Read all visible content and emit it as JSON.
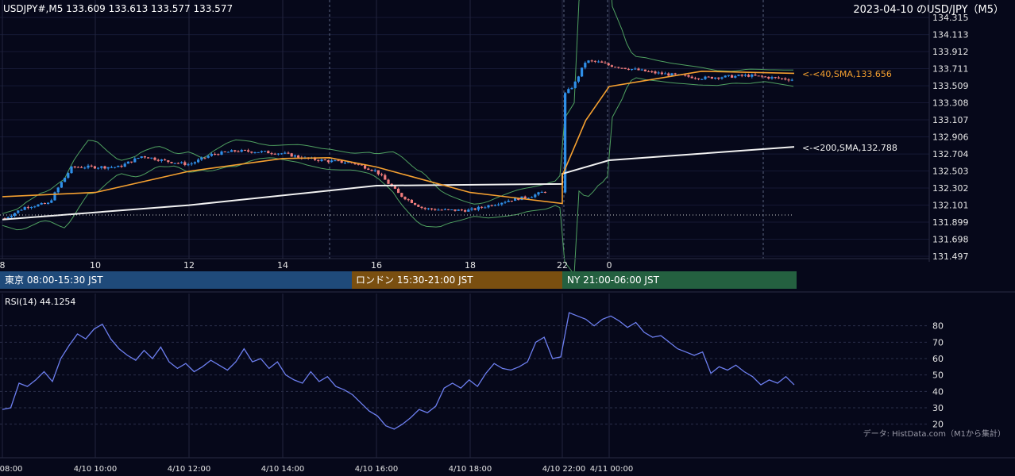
{
  "header": {
    "symbol_ohlc": "USDJPY#,M5 133.609 133.613 133.577 133.577",
    "chart_caption": "2023-04-10 のUSD/JPY（M5）"
  },
  "price_axis_ticks": [
    "134.315",
    "134.113",
    "133.912",
    "133.711",
    "133.509",
    "133.308",
    "133.107",
    "132.906",
    "132.704",
    "132.503",
    "132.302",
    "132.101",
    "131.899",
    "131.698",
    "131.497"
  ],
  "time_axis_ticks": [
    "8",
    "10",
    "12",
    "14",
    "16",
    "18",
    "22",
    "0"
  ],
  "ma_labels": {
    "sma40": "<-<40,SMA,133.656",
    "sma200": "<-<200,SMA,132.788"
  },
  "sessions": [
    {
      "label": "東京 08:00-15:30 JST",
      "color": "#1f4a7a"
    },
    {
      "label": "ロンドン 15:30-21:00 JST",
      "color": "#7a4f10"
    },
    {
      "label": "NY 21:00-06:00 JST",
      "color": "#246040"
    }
  ],
  "rsi": {
    "label": "RSI(14) 44.1254",
    "ticks": [
      "80",
      "70",
      "60",
      "50",
      "40",
      "30",
      "20"
    ]
  },
  "source_note": "データ: HistData.com（M1から集計）",
  "bottom_time_ticks": [
    "08:00",
    "4/10 10:00",
    "4/10 12:00",
    "4/10 14:00",
    "4/10 16:00",
    "4/10 18:00",
    "4/10 22:00",
    "4/11 00:00"
  ],
  "colors": {
    "background": "#06081a",
    "up_candle": "#2f8fe8",
    "down_candle": "#f07c7c",
    "sma40": "#f5a030",
    "sma200": "#f2f2f2",
    "bollinger": "#4fa060",
    "rsi_line": "#6d7ff0"
  },
  "chart_data": [
    {
      "type": "line",
      "title": "USDJPY M5",
      "ylim": [
        131.497,
        134.315
      ],
      "x_ticks": [
        "8",
        "10",
        "12",
        "14",
        "16",
        "18",
        "22",
        "0"
      ],
      "series": [
        {
          "name": "40,SMA",
          "last": 133.656
        },
        {
          "name": "200,SMA",
          "last": 132.788
        }
      ],
      "price_path": [
        {
          "t": "08:00",
          "v": 131.93
        },
        {
          "t": "08:30",
          "v": 132.08
        },
        {
          "t": "09:00",
          "v": 132.12
        },
        {
          "t": "09:15",
          "v": 132.35
        },
        {
          "t": "09:30",
          "v": 132.55
        },
        {
          "t": "10:00",
          "v": 132.55
        },
        {
          "t": "10:30",
          "v": 132.55
        },
        {
          "t": "11:00",
          "v": 132.68
        },
        {
          "t": "11:30",
          "v": 132.62
        },
        {
          "t": "12:00",
          "v": 132.58
        },
        {
          "t": "12:30",
          "v": 132.7
        },
        {
          "t": "13:00",
          "v": 132.74
        },
        {
          "t": "13:30",
          "v": 132.73
        },
        {
          "t": "14:00",
          "v": 132.71
        },
        {
          "t": "14:30",
          "v": 132.65
        },
        {
          "t": "15:00",
          "v": 132.62
        },
        {
          "t": "15:30",
          "v": 132.6
        },
        {
          "t": "16:00",
          "v": 132.5
        },
        {
          "t": "16:30",
          "v": 132.22
        },
        {
          "t": "17:00",
          "v": 132.06
        },
        {
          "t": "17:30",
          "v": 132.04
        },
        {
          "t": "18:00",
          "v": 132.04
        },
        {
          "t": "18:30",
          "v": 132.1
        },
        {
          "t": "19:00",
          "v": 132.16
        },
        {
          "t": "19:30",
          "v": 132.2
        },
        {
          "t": "20:00",
          "v": 132.28
        },
        {
          "t": "20:20",
          "v": 132.3
        },
        {
          "t": "22:00",
          "v": 133.38
        },
        {
          "t": "22:30",
          "v": 133.52
        },
        {
          "t": "23:00",
          "v": 133.8
        },
        {
          "t": "23:30",
          "v": 133.79
        },
        {
          "t": "00:00",
          "v": 133.75
        },
        {
          "t": "00:30",
          "v": 133.66
        },
        {
          "t": "01:00",
          "v": 133.6
        },
        {
          "t": "01:30",
          "v": 133.63
        },
        {
          "t": "02:00",
          "v": 133.58
        }
      ],
      "sma40_path": [
        {
          "t": "08:00",
          "v": 132.2
        },
        {
          "t": "10:00",
          "v": 132.25
        },
        {
          "t": "12:00",
          "v": 132.5
        },
        {
          "t": "14:00",
          "v": 132.65
        },
        {
          "t": "15:00",
          "v": 132.66
        },
        {
          "t": "16:00",
          "v": 132.55
        },
        {
          "t": "18:00",
          "v": 132.25
        },
        {
          "t": "20:20",
          "v": 132.12
        },
        {
          "t": "22:00",
          "v": 132.45
        },
        {
          "t": "23:00",
          "v": 133.1
        },
        {
          "t": "00:00",
          "v": 133.5
        },
        {
          "t": "01:00",
          "v": 133.68
        },
        {
          "t": "02:00",
          "v": 133.656
        }
      ],
      "sma200_path": [
        {
          "t": "08:00",
          "v": 131.93
        },
        {
          "t": "12:00",
          "v": 132.1
        },
        {
          "t": "16:00",
          "v": 132.33
        },
        {
          "t": "20:20",
          "v": 132.35
        },
        {
          "t": "22:00",
          "v": 132.47
        },
        {
          "t": "00:00",
          "v": 132.63
        },
        {
          "t": "02:00",
          "v": 132.788
        }
      ]
    },
    {
      "type": "line",
      "title": "RSI(14) 44.1254",
      "ylim": [
        15,
        90
      ],
      "y_ticks": [
        80,
        70,
        60,
        50,
        40,
        30,
        20
      ],
      "series": [
        {
          "name": "RSI(14)",
          "values": [
            29,
            30,
            45,
            43,
            47,
            52,
            46,
            60,
            68,
            75,
            72,
            78,
            81,
            72,
            66,
            62,
            59,
            65,
            60,
            67,
            58,
            54,
            57,
            52,
            55,
            59,
            56,
            53,
            58,
            66,
            58,
            60,
            54,
            58,
            50,
            47,
            45,
            52,
            46,
            49,
            43,
            41,
            38,
            33,
            28,
            25,
            19,
            17,
            20,
            24,
            29,
            27,
            31,
            42,
            45,
            42,
            47,
            43,
            51,
            57,
            54,
            53,
            55,
            58,
            70,
            73,
            60,
            61,
            88,
            86,
            84,
            80,
            84,
            86,
            83,
            79,
            82,
            76,
            73,
            74,
            70,
            66,
            64,
            62,
            64,
            51,
            55,
            53,
            56,
            52,
            49,
            44,
            47,
            45,
            49,
            44
          ]
        }
      ]
    }
  ]
}
